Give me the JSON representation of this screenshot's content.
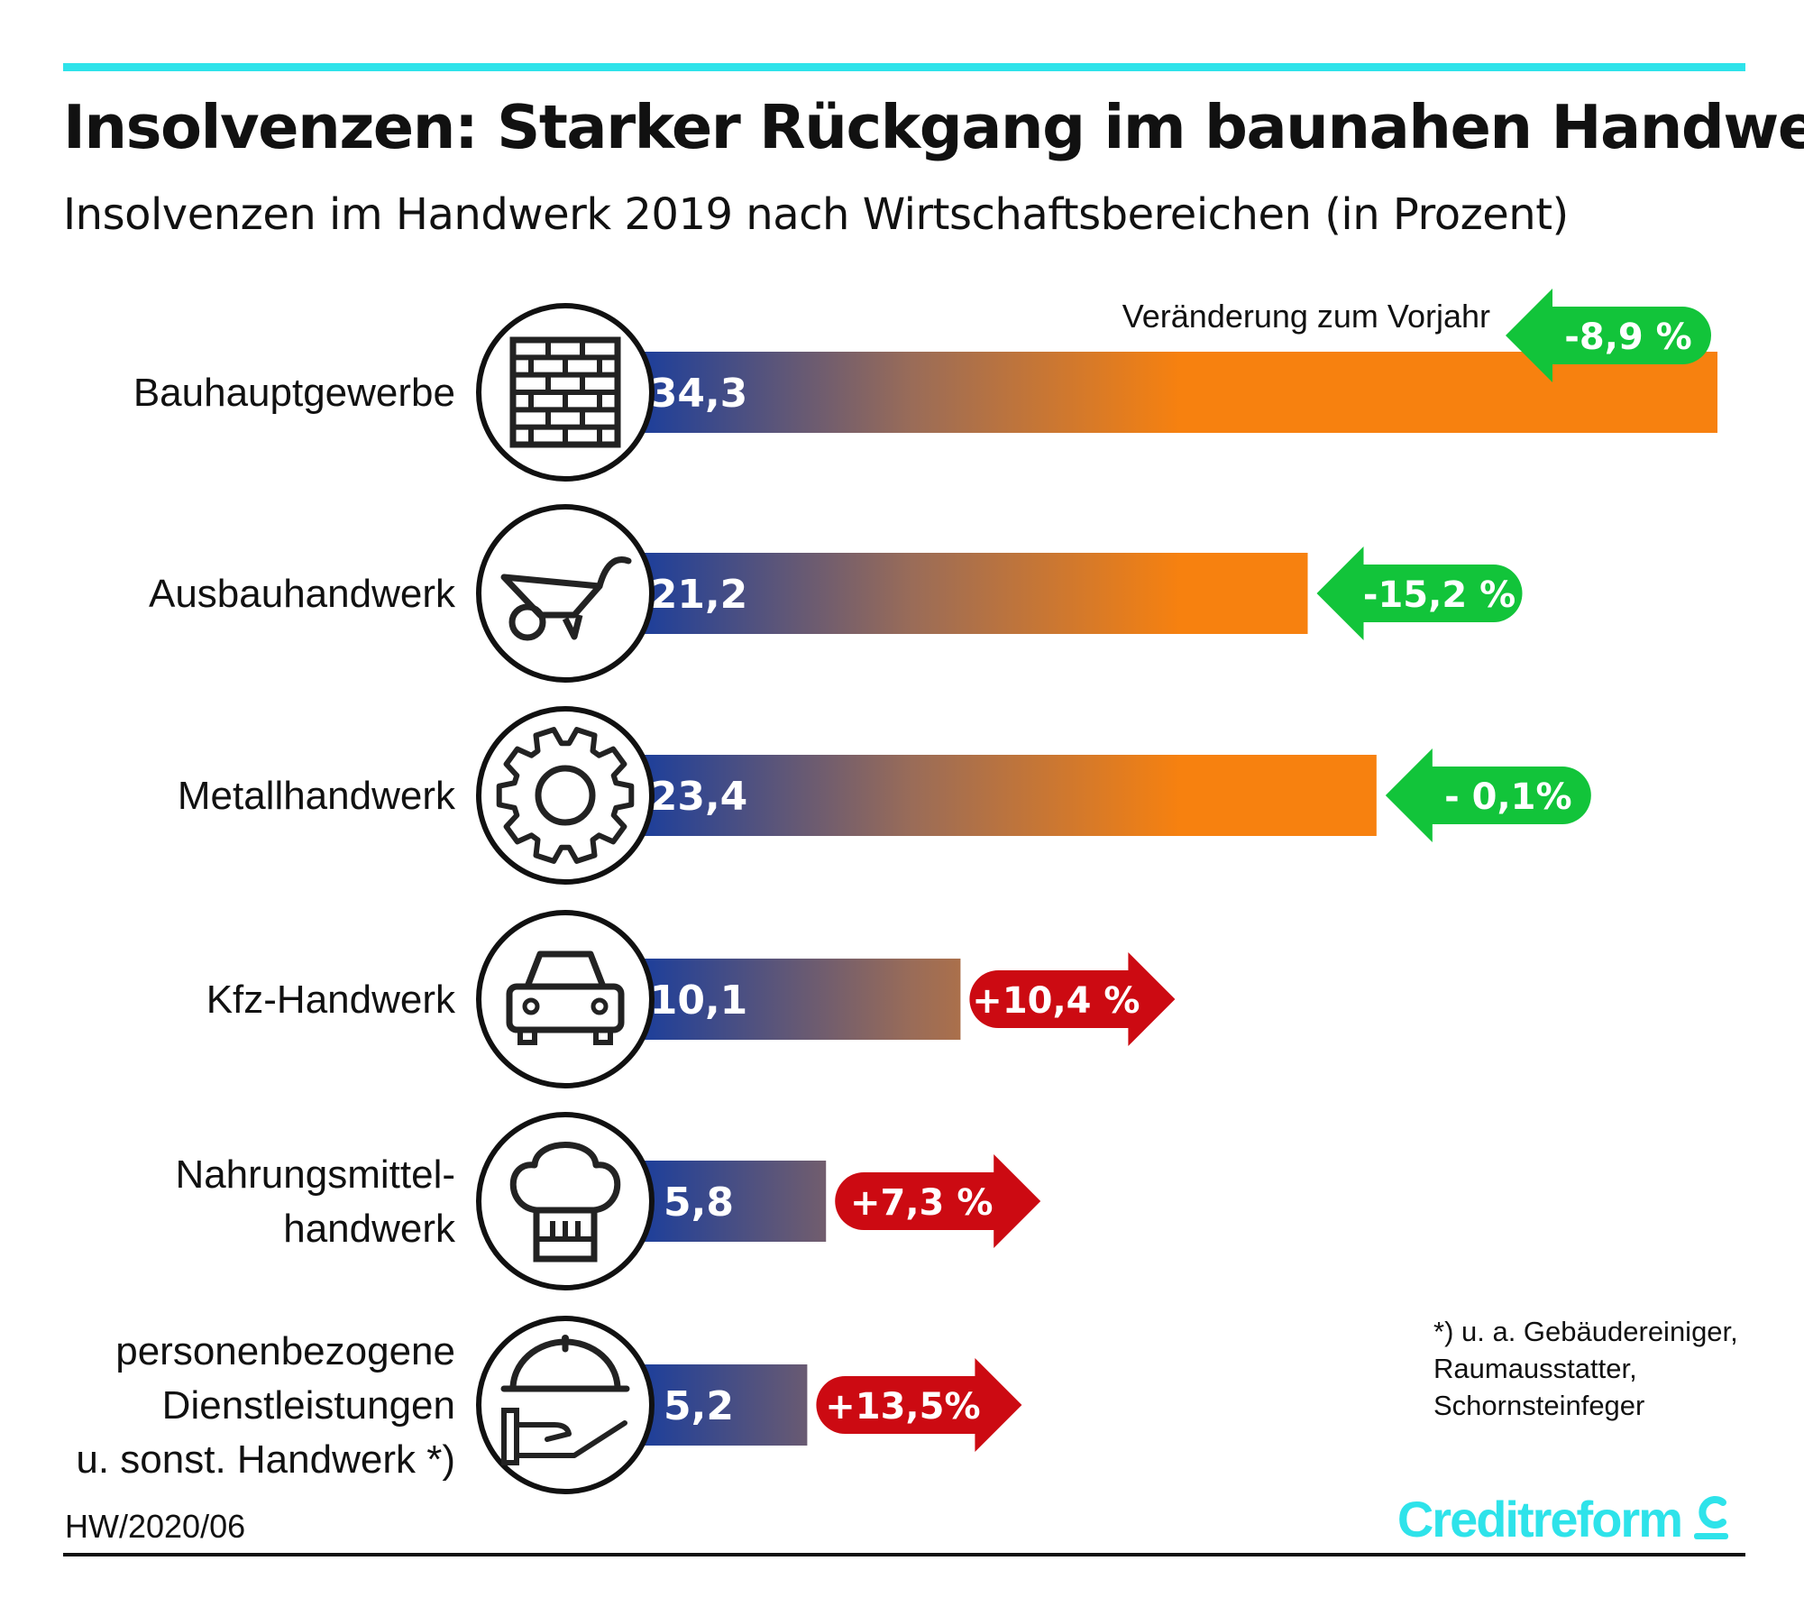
{
  "title": "Insolvenzen: Starker Rückgang im baunahen Handwerk",
  "subtitle": "Insolvenzen im Handwerk 2019 nach Wirtschaftsbereichen (in Prozent)",
  "legend_label": "Veränderung zum Vorjahr",
  "footnote": [
    "*) u. a. Gebäudereiniger,",
    "Raumausstatter,",
    "Schornsteinfeger"
  ],
  "source": "HW/2020/06",
  "brand": "Creditreform",
  "colors": {
    "accent": "#2ee3ea",
    "bar_start": "#1e3f9a",
    "bar_end": "#f7810f",
    "decrease": "#12c43a",
    "increase": "#cc0a12"
  },
  "chart_data": {
    "type": "bar",
    "orientation": "horizontal",
    "categories": [
      [
        "Bauhauptgewerbe"
      ],
      [
        "Ausbauhandwerk"
      ],
      [
        "Metallhandwerk"
      ],
      [
        "Kfz-Handwerk"
      ],
      [
        "Nahrungsmittel-",
        "handwerk"
      ],
      [
        "personenbezogene",
        "Dienstleistungen",
        "u. sonst. Handwerk *)"
      ]
    ],
    "values": [
      34.3,
      21.2,
      23.4,
      10.1,
      5.8,
      5.2
    ],
    "value_labels": [
      "34,3",
      "21,2",
      "23,4",
      "10,1",
      "5,8",
      "5,2"
    ],
    "change_pct": [
      -8.9,
      -15.2,
      -0.1,
      10.4,
      7.3,
      13.5
    ],
    "change_labels": [
      "-8,9 %",
      "-15,2 %",
      "- 0,1%",
      "+10,4 %",
      "+7,3 %",
      "+13,5%"
    ],
    "icons": [
      "brick-wall-icon",
      "wheelbarrow-icon",
      "gear-icon",
      "car-icon",
      "chef-hat-icon",
      "serving-hand-icon"
    ],
    "xlim": [
      0,
      34.3
    ]
  }
}
